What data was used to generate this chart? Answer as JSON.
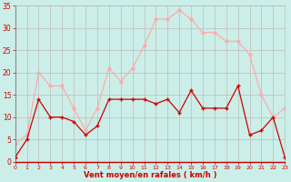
{
  "x": [
    0,
    1,
    2,
    3,
    4,
    5,
    6,
    7,
    8,
    9,
    10,
    11,
    12,
    13,
    14,
    15,
    16,
    17,
    18,
    19,
    20,
    21,
    22,
    23
  ],
  "wind_avg": [
    1,
    5,
    14,
    10,
    10,
    9,
    6,
    8,
    14,
    14,
    14,
    14,
    13,
    14,
    11,
    16,
    12,
    12,
    12,
    17,
    6,
    7,
    10,
    1
  ],
  "wind_gust": [
    4,
    6,
    20,
    17,
    17,
    12,
    7,
    12,
    21,
    18,
    21,
    26,
    32,
    32,
    34,
    32,
    29,
    29,
    27,
    27,
    24,
    15,
    10,
    12
  ],
  "avg_color": "#cc0000",
  "gust_color": "#ffaaaa",
  "bg_color": "#cceee8",
  "grid_color": "#bbbbbb",
  "xlabel": "Vent moyen/en rafales ( km/h )",
  "xlabel_color": "#cc0000",
  "tick_color": "#cc0000",
  "ylim": [
    0,
    35
  ],
  "yticks": [
    0,
    5,
    10,
    15,
    20,
    25,
    30,
    35
  ],
  "xlim": [
    0,
    23
  ]
}
